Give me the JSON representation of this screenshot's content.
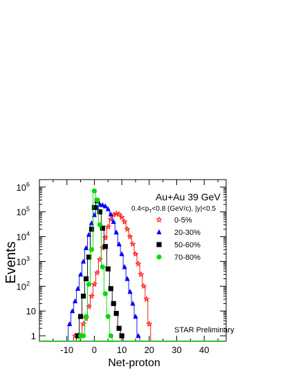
{
  "chart_data": {
    "type": "scatter",
    "xlabel": "Net-proton",
    "ylabel": "Events",
    "y_log_scale": true,
    "xlim": [
      -20,
      48
    ],
    "ylim": [
      0.6,
      2000000
    ],
    "x_ticks": [
      -10,
      0,
      10,
      20,
      30,
      40
    ],
    "y_ticks": [
      {
        "value": 1,
        "base": "1",
        "exp": ""
      },
      {
        "value": 10,
        "base": "10",
        "exp": ""
      },
      {
        "value": 100,
        "base": "10",
        "exp": "2"
      },
      {
        "value": 1000,
        "base": "10",
        "exp": "3"
      },
      {
        "value": 10000,
        "base": "10",
        "exp": "4"
      },
      {
        "value": 100000,
        "base": "10",
        "exp": "5"
      },
      {
        "value": 1000000,
        "base": "10",
        "exp": "6"
      }
    ],
    "annotations": {
      "system": "Au+Au 39 GeV",
      "cuts_prefix": "0.4<p",
      "cuts_sub": "T",
      "cuts_suffix": "<0.8 (GeV/c), |y|<0.5",
      "preliminary": "STAR Preliminary"
    },
    "legend_position": "top-right",
    "series": [
      {
        "name": "0-5%",
        "color": "#ff0000",
        "marker": "star",
        "x": [
          -7,
          -6,
          -5,
          -4,
          -3,
          -2,
          -1,
          0,
          1,
          2,
          3,
          4,
          5,
          6,
          7,
          8,
          9,
          10,
          11,
          12,
          13,
          14,
          15,
          16,
          17,
          18,
          19,
          20
        ],
        "y": [
          1,
          1,
          1,
          3,
          5,
          15,
          40,
          120,
          350,
          1200,
          3500,
          9000,
          25000,
          50000,
          75000,
          85000,
          80000,
          60000,
          40000,
          20000,
          10000,
          5000,
          2000,
          800,
          300,
          100,
          30,
          3
        ]
      },
      {
        "name": "20-30%",
        "color": "#0000ff",
        "marker": "triangle",
        "x": [
          -9,
          -8,
          -7,
          -6,
          -5,
          -4,
          -3,
          -2,
          -1,
          0,
          1,
          2,
          3,
          4,
          5,
          6,
          7,
          8,
          9,
          10,
          11,
          12,
          13,
          14,
          15,
          16
        ],
        "y": [
          3,
          10,
          25,
          80,
          300,
          1000,
          3500,
          12000,
          35000,
          75000,
          150000,
          200000,
          190000,
          170000,
          130000,
          80000,
          40000,
          15000,
          5000,
          2000,
          600,
          200,
          60,
          20,
          6,
          1
        ]
      },
      {
        "name": "50-60%",
        "color": "#000000",
        "marker": "square",
        "x": [
          -6,
          -5,
          -4,
          -3,
          -2,
          -1,
          0,
          1,
          2,
          3,
          4,
          5,
          6,
          7,
          8,
          9,
          10
        ],
        "y": [
          1,
          6,
          40,
          200,
          1500,
          20000,
          150000,
          280000,
          100000,
          22000,
          4000,
          500,
          80,
          20,
          8,
          2,
          1
        ]
      },
      {
        "name": "70-80%",
        "color": "#00dd00",
        "marker": "circle",
        "x": [
          -5,
          -4,
          -3,
          -2,
          -1,
          0,
          1,
          2,
          3,
          4,
          5,
          6
        ],
        "y": [
          1,
          1,
          6,
          120,
          3000,
          700000,
          300000,
          30000,
          600,
          50,
          6,
          1
        ]
      }
    ]
  }
}
